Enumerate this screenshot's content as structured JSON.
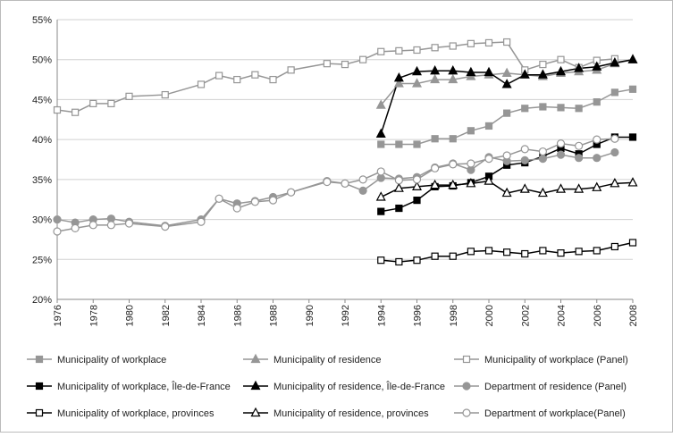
{
  "chart_data": {
    "type": "line",
    "x": [
      1976,
      1977,
      1978,
      1979,
      1980,
      1982,
      1984,
      1985,
      1986,
      1987,
      1988,
      1989,
      1991,
      1992,
      1993,
      1994,
      1995,
      1996,
      1997,
      1998,
      1999,
      2000,
      2001,
      2002,
      2003,
      2004,
      2005,
      2006,
      2007,
      2008
    ],
    "xlim": [
      1976,
      2008
    ],
    "xticks": [
      1976,
      1978,
      1980,
      1982,
      1984,
      1986,
      1988,
      1990,
      1992,
      1994,
      1996,
      1998,
      2000,
      2002,
      2004,
      2006,
      2008
    ],
    "ylim": [
      20,
      55
    ],
    "yticks": [
      {
        "value": 20,
        "label": "20%"
      },
      {
        "value": 25,
        "label": "25%"
      },
      {
        "value": 30,
        "label": "30%"
      },
      {
        "value": 35,
        "label": "35%"
      },
      {
        "value": 40,
        "label": "40%"
      },
      {
        "value": 45,
        "label": "45%"
      },
      {
        "value": 50,
        "label": "50%"
      },
      {
        "value": 55,
        "label": "55%"
      }
    ],
    "grid": true,
    "series": [
      {
        "name": "Municipality of workplace",
        "color": "#969696",
        "marker": "square",
        "filled": true,
        "values": [
          null,
          null,
          null,
          null,
          null,
          null,
          null,
          null,
          null,
          null,
          null,
          null,
          null,
          null,
          null,
          39.4,
          39.4,
          39.4,
          40.1,
          40.1,
          41.1,
          41.7,
          43.3,
          43.9,
          44.1,
          44.0,
          43.9,
          44.7,
          45.9,
          46.3
        ]
      },
      {
        "name": "Municipality of residence",
        "color": "#969696",
        "marker": "triangle",
        "filled": true,
        "values": [
          null,
          null,
          null,
          null,
          null,
          null,
          null,
          null,
          null,
          null,
          null,
          null,
          null,
          null,
          null,
          44.3,
          47.0,
          47.0,
          47.5,
          47.5,
          47.9,
          48.1,
          48.3,
          48.1,
          47.9,
          48.3,
          48.5,
          48.7,
          49.5,
          50.0
        ]
      },
      {
        "name": "Municipality of workplace (Panel)",
        "color": "#969696",
        "marker": "square",
        "filled": false,
        "values": [
          43.7,
          43.4,
          44.5,
          44.5,
          45.4,
          45.6,
          46.9,
          48.0,
          47.5,
          48.1,
          47.5,
          48.7,
          49.5,
          49.4,
          50.0,
          51.0,
          51.1,
          51.2,
          51.5,
          51.7,
          52.0,
          52.1,
          52.2,
          48.7,
          49.4,
          50.0,
          49.0,
          49.9,
          50.1,
          null
        ]
      },
      {
        "name": "Municipality of workplace, Île-de-France",
        "color": "#000000",
        "marker": "square",
        "filled": true,
        "values": [
          null,
          null,
          null,
          null,
          null,
          null,
          null,
          null,
          null,
          null,
          null,
          null,
          null,
          null,
          null,
          31.0,
          31.4,
          32.4,
          34.1,
          34.2,
          34.6,
          35.4,
          36.8,
          37.1,
          37.9,
          38.9,
          38.2,
          39.4,
          40.3,
          40.3
        ]
      },
      {
        "name": "Municipality of residence, Île-de-France",
        "color": "#000000",
        "marker": "triangle",
        "filled": true,
        "values": [
          null,
          null,
          null,
          null,
          null,
          null,
          null,
          null,
          null,
          null,
          null,
          null,
          null,
          null,
          null,
          40.7,
          47.7,
          48.5,
          48.6,
          48.6,
          48.4,
          48.4,
          46.9,
          48.1,
          48.1,
          48.5,
          48.9,
          49.1,
          49.6,
          50.0
        ]
      },
      {
        "name": "Department of residence (Panel)",
        "color": "#969696",
        "marker": "circle",
        "filled": true,
        "values": [
          30.0,
          29.6,
          30.0,
          30.1,
          29.7,
          29.2,
          30.0,
          32.6,
          32.0,
          32.3,
          32.8,
          33.4,
          34.8,
          34.5,
          33.6,
          35.2,
          35.1,
          35.3,
          36.5,
          37.0,
          36.2,
          37.8,
          37.3,
          37.4,
          37.6,
          38.1,
          37.7,
          37.7,
          38.4,
          null
        ]
      },
      {
        "name": "Municipality of workplace, provinces",
        "color": "#000000",
        "marker": "square",
        "filled": false,
        "values": [
          null,
          null,
          null,
          null,
          null,
          null,
          null,
          null,
          null,
          null,
          null,
          null,
          null,
          null,
          null,
          24.9,
          24.7,
          24.9,
          25.4,
          25.4,
          26.0,
          26.1,
          25.9,
          25.7,
          26.1,
          25.8,
          26.0,
          26.1,
          26.6,
          27.1
        ]
      },
      {
        "name": "Municipality of residence, provinces",
        "color": "#000000",
        "marker": "triangle",
        "filled": false,
        "values": [
          null,
          null,
          null,
          null,
          null,
          null,
          null,
          null,
          null,
          null,
          null,
          null,
          null,
          null,
          null,
          32.8,
          33.9,
          34.1,
          34.3,
          34.3,
          34.5,
          34.8,
          33.3,
          33.8,
          33.3,
          33.8,
          33.8,
          34.0,
          34.5,
          34.6
        ]
      },
      {
        "name": "Department of workplace(Panel)",
        "color": "#969696",
        "marker": "circle",
        "filled": false,
        "values": [
          28.5,
          28.9,
          29.3,
          29.3,
          29.5,
          29.1,
          29.7,
          32.6,
          31.4,
          32.2,
          32.4,
          33.4,
          34.7,
          34.5,
          35.0,
          36.0,
          34.9,
          35.0,
          36.4,
          36.9,
          37.0,
          37.6,
          38.0,
          38.8,
          38.5,
          39.5,
          39.2,
          40.0,
          40.1,
          null
        ]
      }
    ]
  }
}
